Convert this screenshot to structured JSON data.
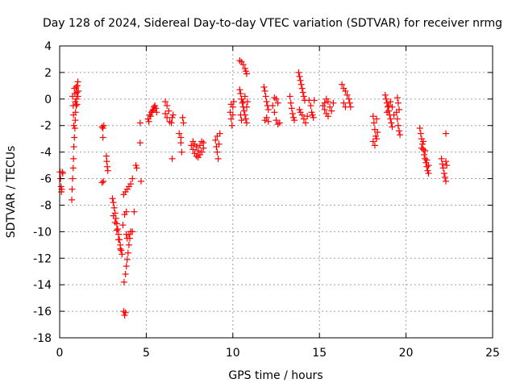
{
  "chart_data": {
    "type": "scatter",
    "title": "Day 128 of 2024, Sidereal Day-to-day VTEC variation (SDTVAR) for receiver nrmg",
    "xlabel": "GPS time / hours",
    "ylabel": "SDTVAR / TECUs",
    "xlim": [
      0,
      25
    ],
    "ylim": [
      -18,
      4
    ],
    "xticks": [
      0,
      5,
      10,
      15,
      20,
      25
    ],
    "yticks": [
      -18,
      -16,
      -14,
      -12,
      -10,
      -8,
      -6,
      -4,
      -2,
      0,
      2,
      4
    ],
    "grid": true,
    "marker": "+",
    "marker_color": "#ff0000",
    "series": [
      {
        "name": "SDTVAR",
        "points": [
          [
            0.02,
            -5.5
          ],
          [
            0.05,
            -6.0
          ],
          [
            0.08,
            -6.6
          ],
          [
            0.1,
            -7.0
          ],
          [
            0.12,
            -6.8
          ],
          [
            0.15,
            -5.5
          ],
          [
            0.18,
            -5.6
          ],
          [
            0.7,
            -7.6
          ],
          [
            0.72,
            -6.8
          ],
          [
            0.75,
            -6.0
          ],
          [
            0.78,
            -5.2
          ],
          [
            0.8,
            -4.5
          ],
          [
            0.82,
            -3.6
          ],
          [
            0.85,
            -2.9
          ],
          [
            0.88,
            -2.2
          ],
          [
            0.9,
            -1.6
          ],
          [
            0.92,
            -1.0
          ],
          [
            0.95,
            -0.5
          ],
          [
            0.97,
            0.0
          ],
          [
            1.0,
            0.5
          ],
          [
            1.02,
            1.0
          ],
          [
            1.05,
            1.3
          ],
          [
            0.75,
            0.2
          ],
          [
            0.78,
            -0.5
          ],
          [
            0.8,
            -1.2
          ],
          [
            0.82,
            -2.0
          ],
          [
            0.85,
            0.8
          ],
          [
            0.88,
            0.4
          ],
          [
            0.9,
            -0.2
          ],
          [
            0.95,
            0.9
          ],
          [
            1.0,
            -0.4
          ],
          [
            1.05,
            0.2
          ],
          [
            1.08,
            0.6
          ],
          [
            2.45,
            -2.1
          ],
          [
            2.5,
            -2.2
          ],
          [
            2.55,
            -2.0
          ],
          [
            2.5,
            -2.9
          ],
          [
            2.45,
            -6.3
          ],
          [
            2.52,
            -6.2
          ],
          [
            2.7,
            -4.3
          ],
          [
            2.72,
            -4.7
          ],
          [
            2.75,
            -5.1
          ],
          [
            2.78,
            -5.4
          ],
          [
            3.05,
            -7.5
          ],
          [
            3.1,
            -7.8
          ],
          [
            3.15,
            -8.2
          ],
          [
            3.2,
            -8.6
          ],
          [
            3.25,
            -9.0
          ],
          [
            3.3,
            -9.4
          ],
          [
            3.35,
            -9.8
          ],
          [
            3.4,
            -10.2
          ],
          [
            3.45,
            -10.6
          ],
          [
            3.5,
            -11.0
          ],
          [
            3.55,
            -11.4
          ],
          [
            3.6,
            -11.7
          ],
          [
            3.1,
            -8.8
          ],
          [
            3.2,
            -9.3
          ],
          [
            3.3,
            -9.9
          ],
          [
            3.4,
            -10.6
          ],
          [
            3.5,
            -11.3
          ],
          [
            3.65,
            -9.5
          ],
          [
            3.75,
            -8.7
          ],
          [
            3.85,
            -8.5
          ],
          [
            3.85,
            -10.2
          ],
          [
            3.9,
            -10.5
          ],
          [
            4.0,
            -10.2
          ],
          [
            4.1,
            -10.0
          ],
          [
            4.2,
            -10.0
          ],
          [
            3.7,
            -7.2
          ],
          [
            3.8,
            -7.0
          ],
          [
            3.9,
            -6.8
          ],
          [
            4.0,
            -6.6
          ],
          [
            4.1,
            -6.4
          ],
          [
            4.2,
            -6.0
          ],
          [
            3.72,
            -13.8
          ],
          [
            3.8,
            -13.2
          ],
          [
            3.85,
            -12.6
          ],
          [
            3.9,
            -12.1
          ],
          [
            3.95,
            -11.6
          ],
          [
            4.0,
            -11.0
          ],
          [
            4.05,
            -10.5
          ],
          [
            4.1,
            -10.0
          ],
          [
            3.7,
            -16.0
          ],
          [
            3.75,
            -16.3
          ],
          [
            3.8,
            -16.1
          ],
          [
            4.3,
            -8.5
          ],
          [
            4.4,
            -5.0
          ],
          [
            4.45,
            -5.2
          ],
          [
            4.65,
            -1.8
          ],
          [
            4.65,
            -3.3
          ],
          [
            4.7,
            -6.2
          ],
          [
            5.1,
            -1.5
          ],
          [
            5.2,
            -1.2
          ],
          [
            5.3,
            -1.0
          ],
          [
            5.4,
            -0.8
          ],
          [
            5.5,
            -0.5
          ],
          [
            5.15,
            -1.7
          ],
          [
            5.25,
            -1.3
          ],
          [
            5.35,
            -0.9
          ],
          [
            5.45,
            -0.6
          ],
          [
            5.55,
            -0.7
          ],
          [
            5.6,
            -1.0
          ],
          [
            6.1,
            -0.2
          ],
          [
            6.2,
            -0.5
          ],
          [
            6.3,
            -0.9
          ],
          [
            6.1,
            -1.1
          ],
          [
            6.2,
            -1.4
          ],
          [
            6.35,
            -1.7
          ],
          [
            6.45,
            -1.8
          ],
          [
            6.5,
            -1.4
          ],
          [
            6.55,
            -1.2
          ],
          [
            6.5,
            -4.5
          ],
          [
            6.9,
            -2.6
          ],
          [
            7.0,
            -2.9
          ],
          [
            7.0,
            -3.3
          ],
          [
            7.05,
            -4.0
          ],
          [
            7.1,
            -1.4
          ],
          [
            7.15,
            -1.8
          ],
          [
            7.6,
            -3.5
          ],
          [
            7.7,
            -3.8
          ],
          [
            7.8,
            -4.1
          ],
          [
            7.9,
            -4.3
          ],
          [
            8.0,
            -4.4
          ],
          [
            8.1,
            -4.2
          ],
          [
            8.2,
            -4.0
          ],
          [
            8.3,
            -3.7
          ],
          [
            7.7,
            -3.2
          ],
          [
            7.8,
            -3.4
          ],
          [
            7.9,
            -3.6
          ],
          [
            8.0,
            -3.9
          ],
          [
            8.1,
            -3.5
          ],
          [
            8.2,
            -3.2
          ],
          [
            8.3,
            -3.3
          ],
          [
            9.0,
            -3.1
          ],
          [
            9.05,
            -3.6
          ],
          [
            9.1,
            -4.0
          ],
          [
            9.15,
            -4.5
          ],
          [
            9.2,
            -3.4
          ],
          [
            9.25,
            -2.6
          ],
          [
            9.1,
            -2.8
          ],
          [
            9.85,
            -1.0
          ],
          [
            9.9,
            -1.5
          ],
          [
            9.95,
            -2.0
          ],
          [
            10.0,
            -0.6
          ],
          [
            10.05,
            -0.2
          ],
          [
            9.9,
            -0.4
          ],
          [
            10.0,
            -1.2
          ],
          [
            10.4,
            2.9
          ],
          [
            10.5,
            2.8
          ],
          [
            10.6,
            2.6
          ],
          [
            10.7,
            2.3
          ],
          [
            10.75,
            2.1
          ],
          [
            10.8,
            1.9
          ],
          [
            10.4,
            0.7
          ],
          [
            10.45,
            0.4
          ],
          [
            10.5,
            0.0
          ],
          [
            10.55,
            -0.3
          ],
          [
            10.6,
            -0.6
          ],
          [
            10.65,
            -0.9
          ],
          [
            10.7,
            -1.2
          ],
          [
            10.75,
            -1.5
          ],
          [
            10.8,
            -1.8
          ],
          [
            10.45,
            -1.2
          ],
          [
            10.5,
            -1.6
          ],
          [
            10.6,
            -0.2
          ],
          [
            10.7,
            0.2
          ],
          [
            10.8,
            -0.6
          ],
          [
            10.85,
            -0.2
          ],
          [
            11.8,
            0.9
          ],
          [
            11.85,
            0.6
          ],
          [
            11.9,
            0.2
          ],
          [
            11.95,
            -0.2
          ],
          [
            12.0,
            -0.5
          ],
          [
            12.05,
            -0.8
          ],
          [
            11.85,
            -1.6
          ],
          [
            11.95,
            -1.4
          ],
          [
            12.05,
            -1.7
          ],
          [
            12.3,
            -0.5
          ],
          [
            12.4,
            -1.0
          ],
          [
            12.5,
            -1.6
          ],
          [
            12.6,
            -1.9
          ],
          [
            12.7,
            -1.8
          ],
          [
            12.4,
            0.1
          ],
          [
            12.5,
            0.0
          ],
          [
            12.6,
            -0.3
          ],
          [
            13.3,
            0.2
          ],
          [
            13.35,
            -0.3
          ],
          [
            13.4,
            -0.7
          ],
          [
            13.45,
            -1.1
          ],
          [
            13.5,
            -1.4
          ],
          [
            13.55,
            -1.6
          ],
          [
            13.8,
            2.0
          ],
          [
            13.85,
            1.7
          ],
          [
            13.9,
            1.4
          ],
          [
            13.95,
            1.1
          ],
          [
            14.0,
            0.8
          ],
          [
            14.05,
            0.5
          ],
          [
            14.1,
            0.2
          ],
          [
            14.15,
            -0.1
          ],
          [
            13.85,
            -0.8
          ],
          [
            13.9,
            -1.0
          ],
          [
            14.0,
            -1.2
          ],
          [
            14.1,
            -1.5
          ],
          [
            14.2,
            -1.8
          ],
          [
            14.3,
            -1.3
          ],
          [
            14.4,
            -0.1
          ],
          [
            14.5,
            -0.5
          ],
          [
            14.55,
            -1.0
          ],
          [
            14.6,
            -1.2
          ],
          [
            14.65,
            -1.4
          ],
          [
            14.7,
            -0.1
          ],
          [
            15.2,
            -0.5
          ],
          [
            15.3,
            -0.8
          ],
          [
            15.4,
            -1.1
          ],
          [
            15.5,
            -1.3
          ],
          [
            15.3,
            -0.3
          ],
          [
            15.4,
            0.0
          ],
          [
            15.5,
            -0.2
          ],
          [
            15.6,
            -0.6
          ],
          [
            15.7,
            -0.9
          ],
          [
            15.8,
            -0.3
          ],
          [
            16.3,
            1.1
          ],
          [
            16.4,
            0.8
          ],
          [
            16.5,
            0.6
          ],
          [
            16.6,
            0.3
          ],
          [
            16.7,
            0.0
          ],
          [
            16.75,
            -0.3
          ],
          [
            16.8,
            -0.6
          ],
          [
            16.4,
            -0.3
          ],
          [
            16.5,
            -0.6
          ],
          [
            18.1,
            -1.3
          ],
          [
            18.15,
            -1.8
          ],
          [
            18.2,
            -2.3
          ],
          [
            18.25,
            -2.8
          ],
          [
            18.1,
            -3.2
          ],
          [
            18.2,
            -3.5
          ],
          [
            18.3,
            -3.0
          ],
          [
            18.35,
            -2.5
          ],
          [
            18.3,
            -1.5
          ],
          [
            18.8,
            0.3
          ],
          [
            18.85,
            0.0
          ],
          [
            18.9,
            -0.3
          ],
          [
            18.95,
            -0.6
          ],
          [
            19.0,
            -0.9
          ],
          [
            19.05,
            -1.2
          ],
          [
            19.1,
            -1.5
          ],
          [
            19.15,
            -1.8
          ],
          [
            19.2,
            -2.1
          ],
          [
            18.9,
            -1.0
          ],
          [
            19.0,
            -0.5
          ],
          [
            19.1,
            -0.2
          ],
          [
            19.2,
            -0.6
          ],
          [
            19.3,
            -1.2
          ],
          [
            19.5,
            0.1
          ],
          [
            19.55,
            -0.3
          ],
          [
            19.6,
            -0.8
          ],
          [
            19.45,
            -1.0
          ],
          [
            19.5,
            -1.5
          ],
          [
            19.55,
            -2.0
          ],
          [
            19.6,
            -2.4
          ],
          [
            19.65,
            -2.7
          ],
          [
            20.8,
            -2.2
          ],
          [
            20.85,
            -2.6
          ],
          [
            20.9,
            -3.0
          ],
          [
            20.95,
            -3.4
          ],
          [
            21.0,
            -3.8
          ],
          [
            21.05,
            -4.2
          ],
          [
            21.1,
            -4.5
          ],
          [
            21.15,
            -4.8
          ],
          [
            21.2,
            -5.1
          ],
          [
            21.25,
            -5.4
          ],
          [
            21.3,
            -5.6
          ],
          [
            20.9,
            -3.7
          ],
          [
            21.0,
            -3.2
          ],
          [
            21.1,
            -3.9
          ],
          [
            21.2,
            -4.6
          ],
          [
            21.3,
            -5.0
          ],
          [
            22.05,
            -4.5
          ],
          [
            22.1,
            -4.9
          ],
          [
            22.15,
            -5.2
          ],
          [
            22.2,
            -5.6
          ],
          [
            22.25,
            -5.9
          ],
          [
            22.3,
            -6.2
          ],
          [
            22.35,
            -5.0
          ],
          [
            22.3,
            -4.7
          ],
          [
            22.3,
            -2.6
          ]
        ]
      }
    ]
  }
}
